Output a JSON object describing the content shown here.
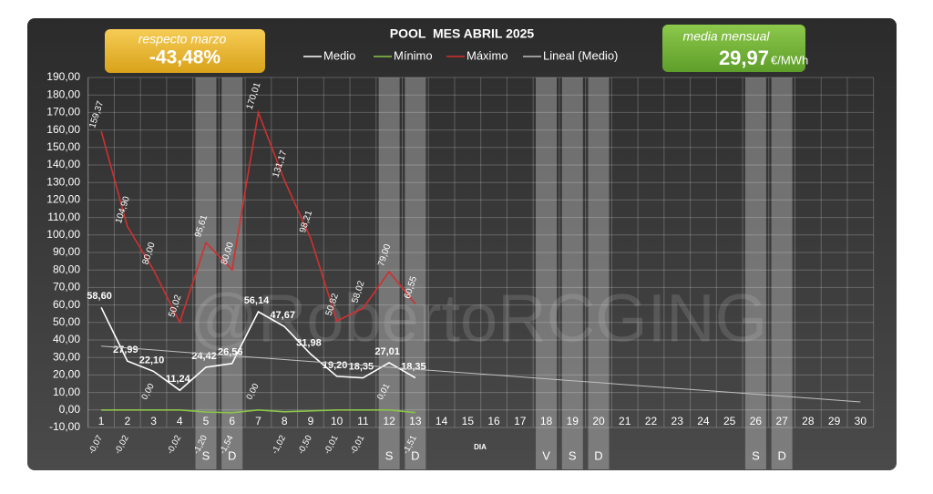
{
  "chart_data": {
    "type": "line",
    "title": "POOL  MES ABRIL 2025",
    "x_label": "DIA",
    "categories": [
      "1",
      "2",
      "3",
      "4",
      "5",
      "6",
      "7",
      "8",
      "9",
      "10",
      "11",
      "12",
      "13",
      "14",
      "15",
      "16",
      "17",
      "18",
      "19",
      "20",
      "21",
      "22",
      "23",
      "24",
      "25",
      "26",
      "27",
      "28",
      "29",
      "30"
    ],
    "series": [
      {
        "name": "Medio",
        "color": "#ffffff",
        "values": [
          58.6,
          27.99,
          22.1,
          11.24,
          24.42,
          26.56,
          56.14,
          47.67,
          31.98,
          19.2,
          18.35,
          27.01,
          18.35,
          null,
          null,
          null,
          null,
          null,
          null,
          null,
          null,
          null,
          null,
          null,
          null,
          null,
          null,
          null,
          null,
          null
        ],
        "value_labels": [
          "58,60",
          "27,99",
          "22,10",
          "11,24",
          "24,42",
          "26,56",
          "56,14",
          "47,67",
          "31,98",
          "19,20",
          "18,35",
          "27,01",
          "18,35",
          null,
          null,
          null,
          null,
          null,
          null,
          null,
          null,
          null,
          null,
          null,
          null,
          null,
          null,
          null,
          null,
          null
        ]
      },
      {
        "name": "Mínimo",
        "color": "#8bc34a",
        "values": [
          -0.07,
          -0.02,
          0.0,
          -0.02,
          -1.2,
          -1.54,
          0.0,
          -1.02,
          -0.5,
          -0.01,
          -0.01,
          0.01,
          -1.51,
          null,
          null,
          null,
          null,
          null,
          null,
          null,
          null,
          null,
          null,
          null,
          null,
          null,
          null,
          null,
          null,
          null
        ],
        "value_labels": [
          "-0,07",
          "-0,02",
          "0,00",
          "-0,02",
          "-1,20",
          "-1,54",
          "0,00",
          "-1,02",
          "-0,50",
          "-0,01",
          "-0,01",
          "0,01",
          "-1,51",
          null,
          null,
          null,
          null,
          null,
          null,
          null,
          null,
          null,
          null,
          null,
          null,
          null,
          null,
          null,
          null,
          null
        ]
      },
      {
        "name": "Máximo",
        "color": "#d32f2f",
        "values": [
          159.37,
          104.9,
          80.0,
          50.02,
          95.61,
          80.0,
          170.01,
          131.17,
          98.21,
          50.82,
          58.02,
          79.0,
          60.55,
          null,
          null,
          null,
          null,
          null,
          null,
          null,
          null,
          null,
          null,
          null,
          null,
          null,
          null,
          null,
          null,
          null
        ],
        "value_labels": [
          "159,37",
          "104,90",
          "80,00",
          "50,02",
          "95,61",
          "80,00",
          "170,01",
          "131,17",
          "98,21",
          "50,82",
          "58,02",
          "79,00",
          "60,55",
          null,
          null,
          null,
          null,
          null,
          null,
          null,
          null,
          null,
          null,
          null,
          null,
          null,
          null,
          null,
          null,
          null
        ]
      },
      {
        "name": "Lineal (Medio)",
        "color": "#bfbfbf",
        "values": [
          36.5,
          35.4,
          34.3,
          33.2,
          32.1,
          31.0,
          29.9,
          28.8,
          27.7,
          26.6,
          25.5,
          24.4,
          23.3,
          22.2,
          21.1,
          20.0,
          18.9,
          17.8,
          16.7,
          15.6,
          14.5,
          13.4,
          12.3,
          11.2,
          10.1,
          9.0,
          7.9,
          6.8,
          5.7,
          4.6
        ]
      }
    ],
    "ylim": [
      -10,
      190
    ],
    "yticks": [
      {
        "value": -10,
        "label": "-10,00"
      },
      {
        "value": 0,
        "label": "0,00"
      },
      {
        "value": 10,
        "label": "10,00"
      },
      {
        "value": 20,
        "label": "20,00"
      },
      {
        "value": 30,
        "label": "30,00"
      },
      {
        "value": 40,
        "label": "40,00"
      },
      {
        "value": 50,
        "label": "50,00"
      },
      {
        "value": 60,
        "label": "60,00"
      },
      {
        "value": 70,
        "label": "70,00"
      },
      {
        "value": 80,
        "label": "80,00"
      },
      {
        "value": 90,
        "label": "90,00"
      },
      {
        "value": 100,
        "label": "100,00"
      },
      {
        "value": 110,
        "label": "110,00"
      },
      {
        "value": 120,
        "label": "120,00"
      },
      {
        "value": 130,
        "label": "130,00"
      },
      {
        "value": 140,
        "label": "140,00"
      },
      {
        "value": 150,
        "label": "150,00"
      },
      {
        "value": 160,
        "label": "160,00"
      },
      {
        "value": 170,
        "label": "170,00"
      },
      {
        "value": 180,
        "label": "180,00"
      },
      {
        "value": 190,
        "label": "190,00"
      }
    ],
    "grid": true,
    "legend": "top",
    "shaded": [
      {
        "category": "5",
        "label": "S"
      },
      {
        "category": "6",
        "label": "D"
      },
      {
        "category": "12",
        "label": "S"
      },
      {
        "category": "13",
        "label": "D"
      },
      {
        "category": "18",
        "label": "V"
      },
      {
        "category": "19",
        "label": "S"
      },
      {
        "category": "20",
        "label": "D"
      },
      {
        "category": "26",
        "label": "S"
      },
      {
        "category": "27",
        "label": "D"
      }
    ],
    "annotations": [
      "respecto marzo",
      "-43,48%",
      "media mensual",
      "29,97",
      "€/MWh",
      "@RobertoRCGING"
    ]
  }
}
